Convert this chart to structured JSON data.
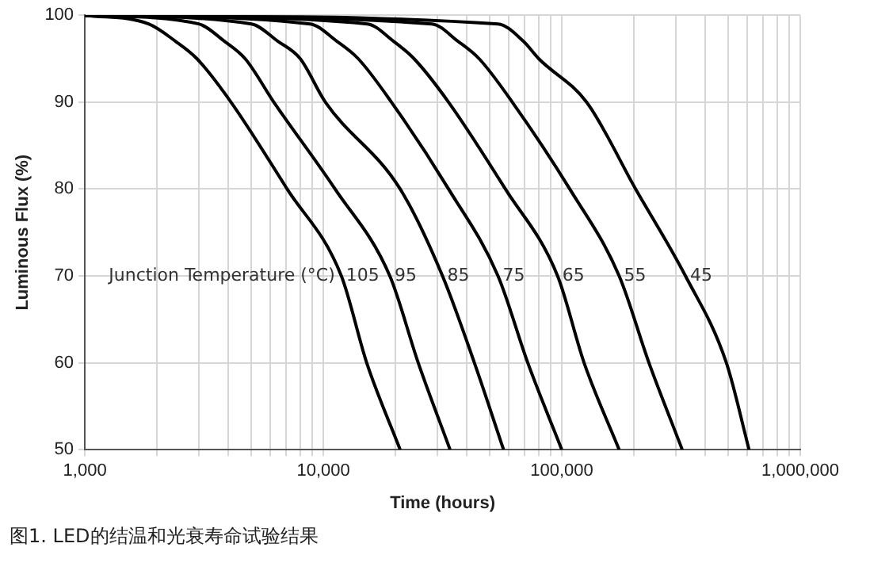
{
  "chart_data": {
    "type": "line",
    "xlabel": "Time (hours)",
    "ylabel": "Luminous Flux (%)",
    "log": "x",
    "grid": true,
    "legend": false,
    "marker": "none",
    "line_style": "solid",
    "xlim": [
      1000,
      1000000
    ],
    "ylim": [
      50,
      100
    ],
    "xticks": [
      {
        "value": 1000,
        "label": "1,000"
      },
      {
        "value": 2000,
        "label": null
      },
      {
        "value": 3000,
        "label": null
      },
      {
        "value": 4000,
        "label": null
      },
      {
        "value": 5000,
        "label": null
      },
      {
        "value": 6000,
        "label": null
      },
      {
        "value": 7000,
        "label": null
      },
      {
        "value": 8000,
        "label": null
      },
      {
        "value": 9000,
        "label": null
      },
      {
        "value": 10000,
        "label": "10,000"
      },
      {
        "value": 20000,
        "label": null
      },
      {
        "value": 30000,
        "label": null
      },
      {
        "value": 40000,
        "label": null
      },
      {
        "value": 50000,
        "label": null
      },
      {
        "value": 60000,
        "label": null
      },
      {
        "value": 70000,
        "label": null
      },
      {
        "value": 80000,
        "label": null
      },
      {
        "value": 90000,
        "label": null
      },
      {
        "value": 100000,
        "label": "100,000"
      },
      {
        "value": 200000,
        "label": null
      },
      {
        "value": 300000,
        "label": null
      },
      {
        "value": 400000,
        "label": null
      },
      {
        "value": 500000,
        "label": null
      },
      {
        "value": 600000,
        "label": null
      },
      {
        "value": 700000,
        "label": null
      },
      {
        "value": 800000,
        "label": null
      },
      {
        "value": 900000,
        "label": null
      },
      {
        "value": 1000000,
        "label": "1,000,000"
      }
    ],
    "yticks": [
      50,
      60,
      70,
      80,
      90,
      100
    ],
    "annotations": [
      "Junction Temperature (°C)",
      "图1. LED的结温和光衰寿命试验结果"
    ],
    "series": [
      {
        "name": "105",
        "color": "#000000",
        "x": [
          1000,
          1850,
          2400,
          2950,
          4100,
          7050,
          11900,
          15200,
          21000
        ],
        "values": [
          100,
          99,
          97,
          95,
          90,
          80,
          70,
          60,
          50
        ]
      },
      {
        "name": "95",
        "color": "#000000",
        "x": [
          1000,
          3000,
          3850,
          4700,
          6200,
          11200,
          19000,
          25000,
          34000
        ],
        "values": [
          100,
          99,
          97,
          95,
          90,
          80,
          70,
          60,
          50
        ]
      },
      {
        "name": "85",
        "color": "#000000",
        "x": [
          1000,
          5000,
          6450,
          8000,
          10200,
          21000,
          31600,
          43000,
          57000
        ],
        "values": [
          100,
          99,
          97,
          95,
          90,
          80,
          70,
          60,
          50
        ]
      },
      {
        "name": "75",
        "color": "#000000",
        "x": [
          1000,
          8800,
          11400,
          14000,
          19300,
          33500,
          54000,
          72000,
          100000
        ],
        "values": [
          100,
          99,
          97,
          95,
          90,
          80,
          70,
          60,
          50
        ]
      },
      {
        "name": "65",
        "color": "#000000",
        "x": [
          1000,
          15300,
          19700,
          24000,
          33500,
          58000,
          96000,
          124000,
          174000
        ],
        "values": [
          100,
          99,
          97,
          95,
          90,
          80,
          70,
          60,
          50
        ]
      },
      {
        "name": "55",
        "color": "#000000",
        "x": [
          1000,
          28500,
          36700,
          45000,
          62000,
          108000,
          174000,
          232000,
          320000
        ],
        "values": [
          100,
          99,
          97,
          95,
          90,
          80,
          70,
          60,
          50
        ]
      },
      {
        "name": "45",
        "color": "#000000",
        "x": [
          1000,
          54000,
          69000,
          80000,
          127000,
          204000,
          330000,
          490000,
          610000
        ],
        "values": [
          100,
          99,
          97,
          95,
          90,
          80,
          70,
          60,
          50
        ]
      }
    ]
  }
}
